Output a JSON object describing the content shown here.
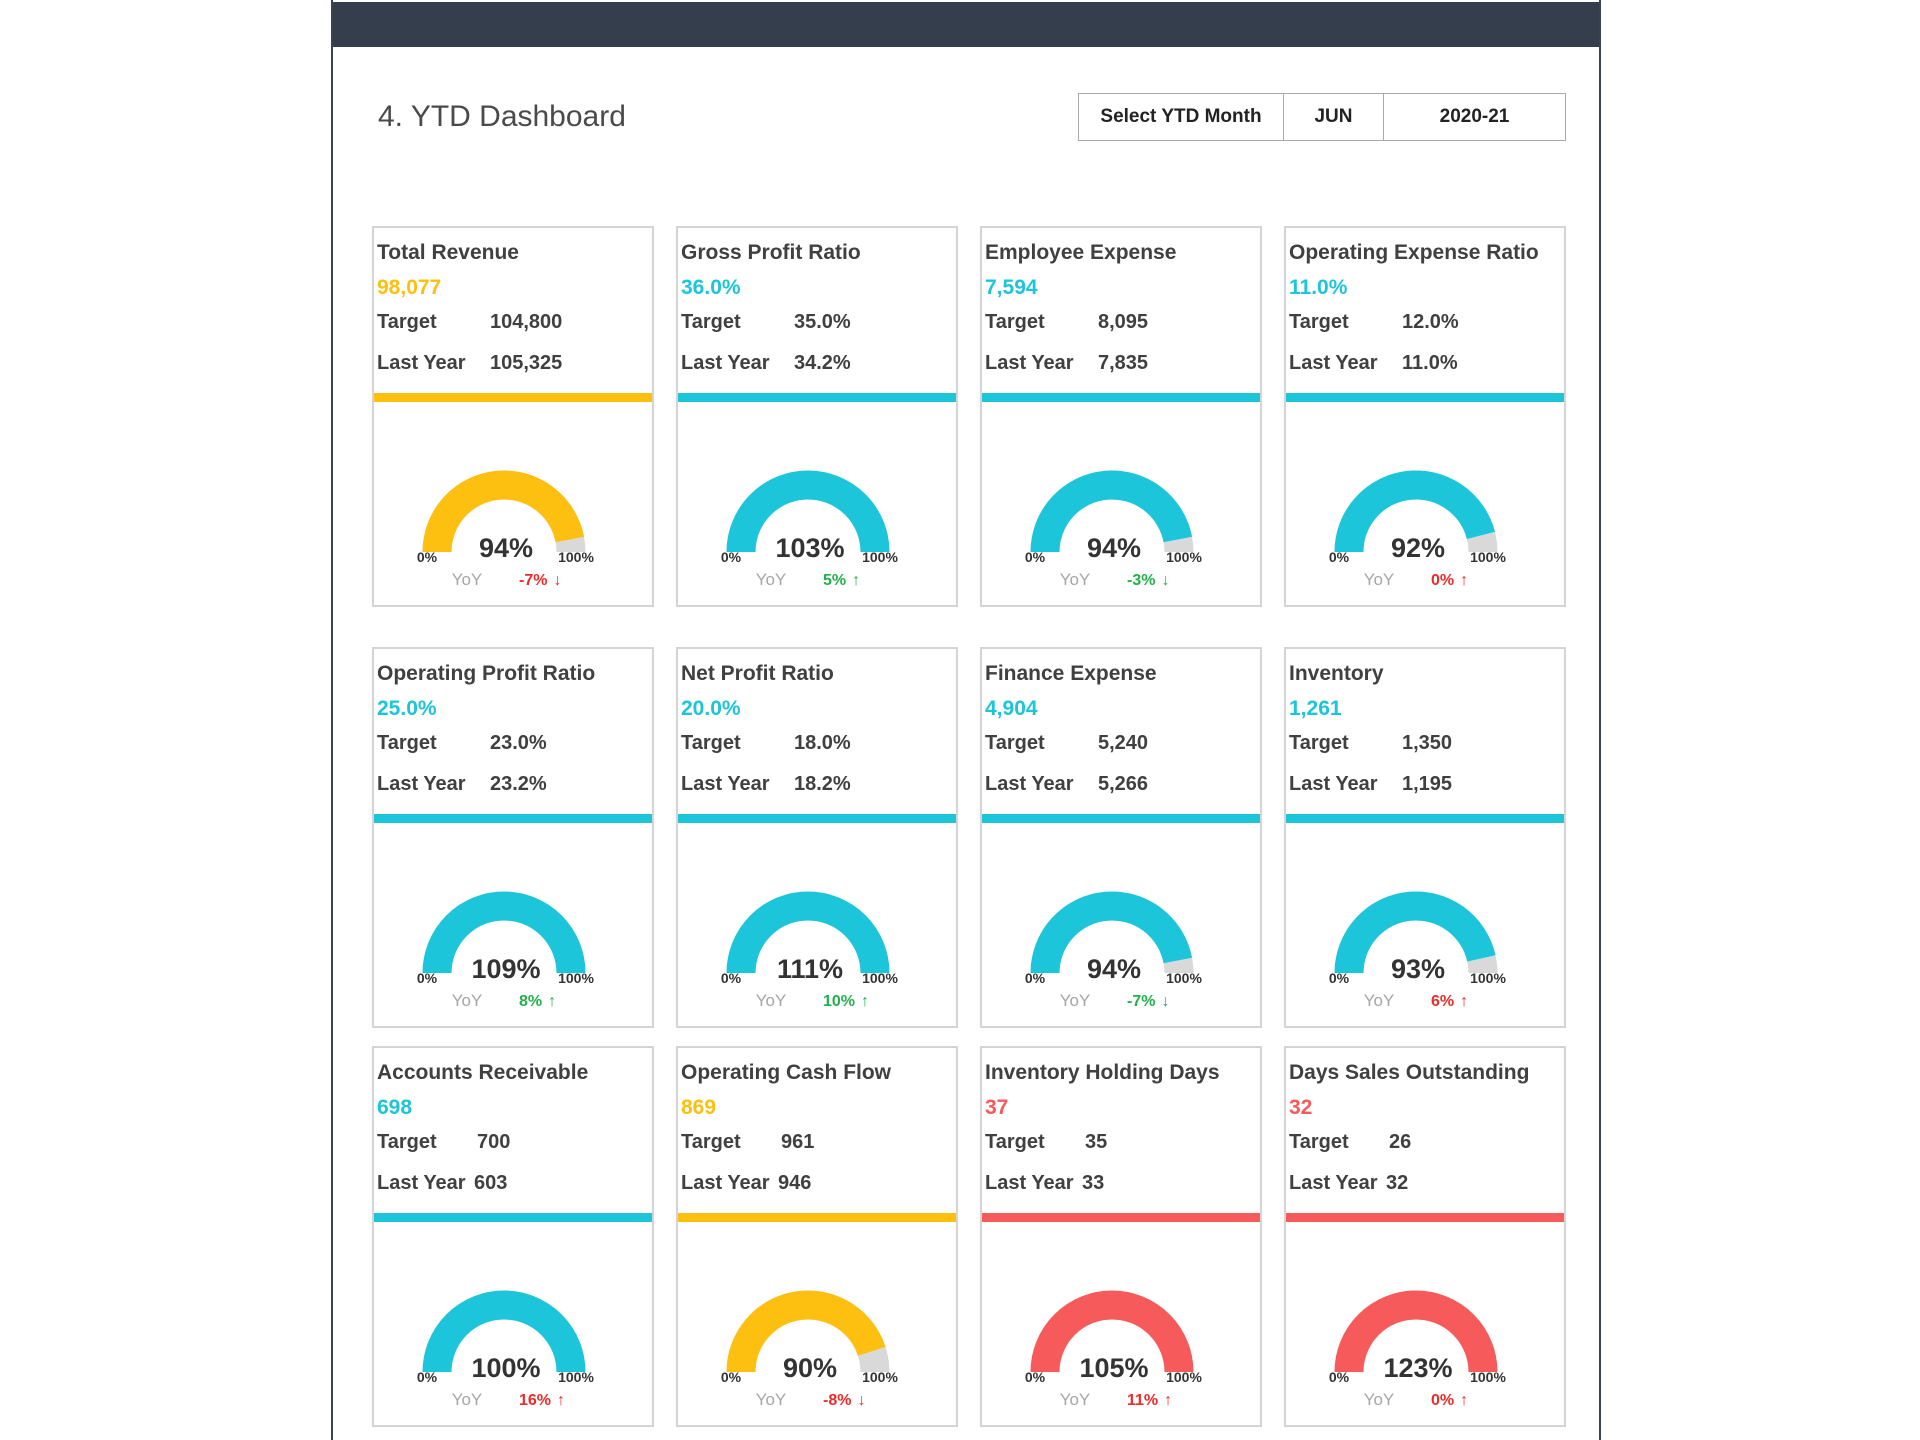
{
  "header": {
    "title": "4. YTD Dashboard",
    "selector": {
      "label": "Select YTD Month",
      "month": "JUN",
      "year": "2020-21"
    }
  },
  "colors": {
    "yellow": "#fdc010",
    "cyan": "#1cc5d9",
    "red": "#f65a5b",
    "track": "#d9d9d9",
    "up_green": "#22b04b",
    "down_red": "#ee2b2b",
    "topbar": "#343e4d"
  },
  "labels": {
    "target": "Target",
    "last_year": "Last Year",
    "zero": "0%",
    "hundred": "100%",
    "yoy": "YoY"
  },
  "cards": [
    {
      "title": "Total Revenue",
      "value": "98,077",
      "target": "104,800",
      "last_year": "105,325",
      "pct": "94%",
      "fill": 0.94,
      "yoy": "-7%",
      "arrow": "↓",
      "yoy_color": "red",
      "color": "yellow"
    },
    {
      "title": "Gross Profit Ratio",
      "value": "36.0%",
      "target": "35.0%",
      "last_year": "34.2%",
      "pct": "103%",
      "fill": 1.0,
      "yoy": "5%",
      "arrow": "↑",
      "yoy_color": "green",
      "color": "cyan"
    },
    {
      "title": "Employee Expense",
      "value": "7,594",
      "target": "8,095",
      "last_year": "7,835",
      "pct": "94%",
      "fill": 0.94,
      "yoy": "-3%",
      "arrow": "↓",
      "yoy_color": "green",
      "color": "cyan"
    },
    {
      "title": "Operating Expense Ratio",
      "value": "11.0%",
      "target": "12.0%",
      "last_year": "11.0%",
      "pct": "92%",
      "fill": 0.92,
      "yoy": "0%",
      "arrow": "↑",
      "yoy_color": "red",
      "color": "cyan"
    },
    {
      "title": "Operating Profit Ratio",
      "value": "25.0%",
      "target": "23.0%",
      "last_year": "23.2%",
      "pct": "109%",
      "fill": 1.0,
      "yoy": "8%",
      "arrow": "↑",
      "yoy_color": "green",
      "color": "cyan"
    },
    {
      "title": "Net Profit Ratio",
      "value": "20.0%",
      "target": "18.0%",
      "last_year": "18.2%",
      "pct": "111%",
      "fill": 1.0,
      "yoy": "10%",
      "arrow": "↑",
      "yoy_color": "green",
      "color": "cyan"
    },
    {
      "title": "Finance Expense",
      "value": "4,904",
      "target": "5,240",
      "last_year": "5,266",
      "pct": "94%",
      "fill": 0.94,
      "yoy": "-7%",
      "arrow": "↓",
      "yoy_color": "green",
      "color": "cyan"
    },
    {
      "title": "Inventory",
      "value": "1,261",
      "target": "1,350",
      "last_year": "1,195",
      "pct": "93%",
      "fill": 0.93,
      "yoy": "6%",
      "arrow": "↑",
      "yoy_color": "red",
      "color": "cyan"
    },
    {
      "title": "Accounts Receivable",
      "value": "698",
      "target": "700",
      "last_year": "603",
      "pct": "100%",
      "fill": 1.0,
      "yoy": "16%",
      "arrow": "↑",
      "yoy_color": "red",
      "color": "cyan"
    },
    {
      "title": "Operating Cash Flow",
      "value": "869",
      "target": "961",
      "last_year": "946",
      "pct": "90%",
      "fill": 0.9,
      "yoy": "-8%",
      "arrow": "↓",
      "yoy_color": "red",
      "color": "yellow"
    },
    {
      "title": "Inventory Holding Days",
      "value": "37",
      "target": "35",
      "last_year": "33",
      "pct": "105%",
      "fill": 1.0,
      "yoy": "11%",
      "arrow": "↑",
      "yoy_color": "red",
      "color": "red"
    },
    {
      "title": "Days Sales Outstanding",
      "value": "32",
      "target": "26",
      "last_year": "32",
      "pct": "123%",
      "fill": 1.0,
      "yoy": "0%",
      "arrow": "↑",
      "yoy_color": "red",
      "color": "red"
    }
  ]
}
